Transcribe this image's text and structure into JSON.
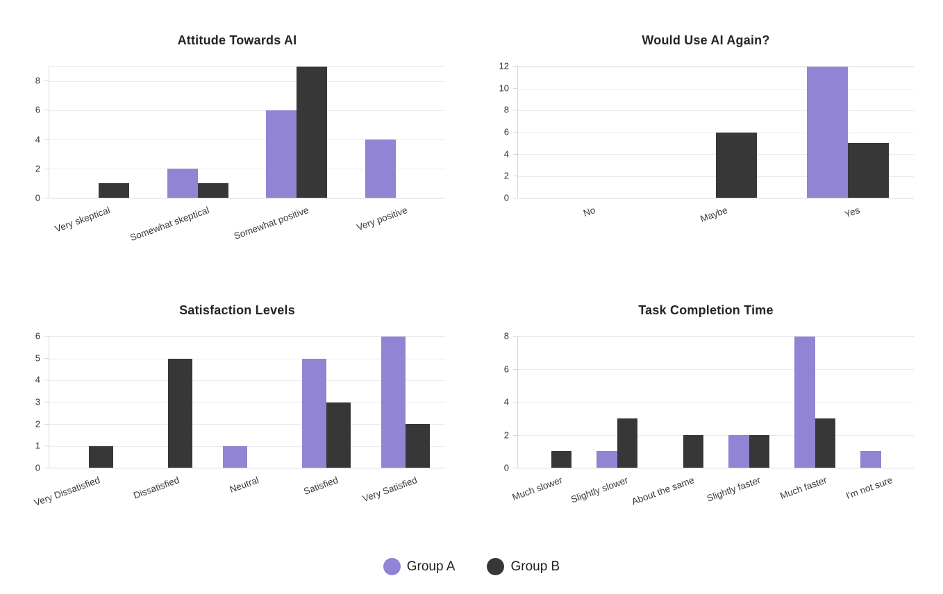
{
  "colors": {
    "group_a": "#9184d4",
    "group_b": "#373737",
    "gridline": "#ebebeb",
    "axis_line": "#d7d7d7"
  },
  "legend": {
    "items": [
      {
        "name": "Group A",
        "color": "#9184d4"
      },
      {
        "name": "Group B",
        "color": "#373737"
      }
    ]
  },
  "chart_data": [
    {
      "type": "bar",
      "title": "Attitude Towards AI",
      "categories": [
        "Very skeptical",
        "Somewhat skeptical",
        "Somewhat positive",
        "Very positive"
      ],
      "series": [
        {
          "name": "Group A",
          "color": "#9184d4",
          "values": [
            0,
            2,
            6,
            4
          ]
        },
        {
          "name": "Group B",
          "color": "#373737",
          "values": [
            1,
            1,
            9,
            0
          ]
        }
      ],
      "yticks": [
        0,
        2,
        4,
        6,
        8
      ],
      "ylim": [
        0,
        9
      ],
      "grid": true,
      "legend_position": "shared-bottom"
    },
    {
      "type": "bar",
      "title": "Would Use AI Again?",
      "categories": [
        "No",
        "Maybe",
        "Yes"
      ],
      "series": [
        {
          "name": "Group A",
          "color": "#9184d4",
          "values": [
            0,
            0,
            12
          ]
        },
        {
          "name": "Group B",
          "color": "#373737",
          "values": [
            0,
            6,
            5
          ]
        }
      ],
      "yticks": [
        0,
        2,
        4,
        6,
        8,
        10,
        12
      ],
      "ylim": [
        0,
        12
      ],
      "grid": true,
      "legend_position": "shared-bottom"
    },
    {
      "type": "bar",
      "title": "Satisfaction Levels",
      "categories": [
        "Very Dissatisfied",
        "Dissatisfied",
        "Neutral",
        "Satisfied",
        "Very Satisfied"
      ],
      "series": [
        {
          "name": "Group A",
          "color": "#9184d4",
          "values": [
            0,
            0,
            1,
            5,
            6
          ]
        },
        {
          "name": "Group B",
          "color": "#373737",
          "values": [
            1,
            5,
            0,
            3,
            2
          ]
        }
      ],
      "yticks": [
        0,
        1,
        2,
        3,
        4,
        5,
        6
      ],
      "ylim": [
        0,
        6
      ],
      "grid": true,
      "legend_position": "shared-bottom"
    },
    {
      "type": "bar",
      "title": "Task Completion Time",
      "categories": [
        "Much slower",
        "Slightly slower",
        "About the same",
        "Slightly faster",
        "Much faster",
        "I'm not sure"
      ],
      "series": [
        {
          "name": "Group A",
          "color": "#9184d4",
          "values": [
            0,
            1,
            0,
            2,
            8,
            1
          ]
        },
        {
          "name": "Group B",
          "color": "#373737",
          "values": [
            1,
            3,
            2,
            2,
            3,
            0
          ]
        }
      ],
      "yticks": [
        0,
        2,
        4,
        6,
        8
      ],
      "ylim": [
        0,
        8
      ],
      "grid": true,
      "legend_position": "shared-bottom"
    }
  ]
}
